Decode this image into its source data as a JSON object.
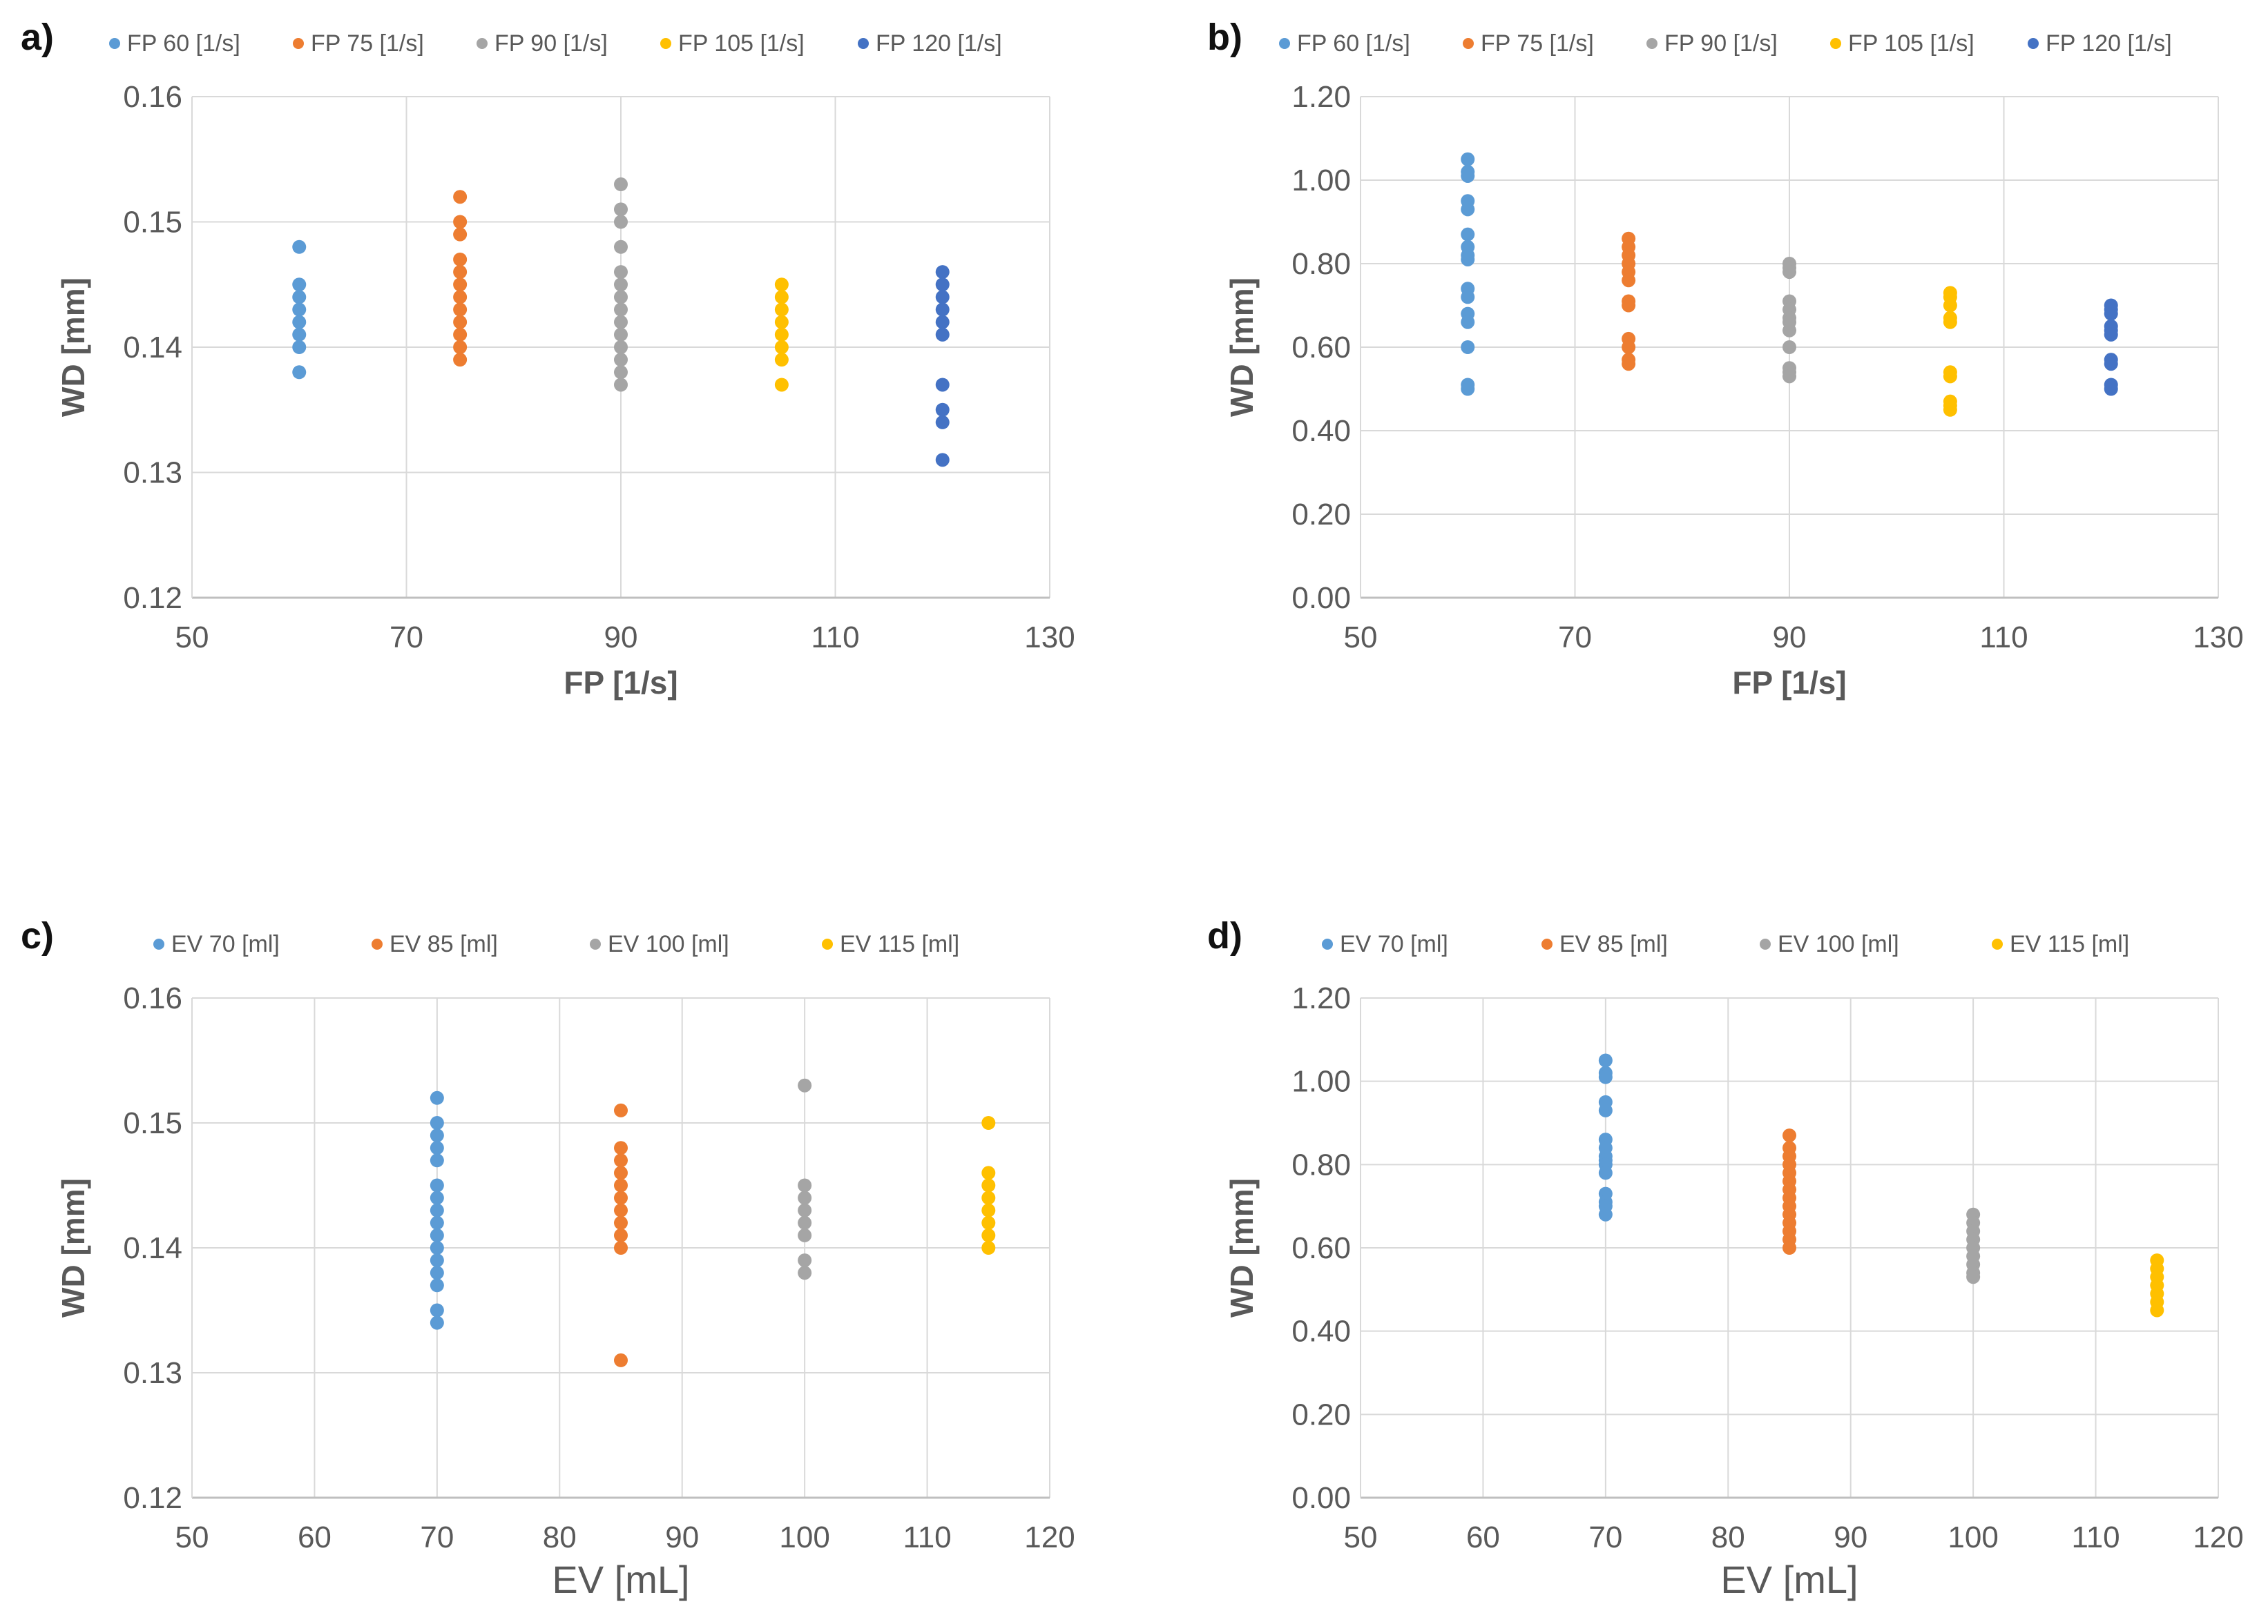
{
  "chart_data": [
    {
      "type": "scatter",
      "panel_label": "a)",
      "xlabel": "FP [1/s]",
      "ylabel": "WD [mm]",
      "xlim": [
        50,
        130
      ],
      "ylim": [
        0.12,
        0.16
      ],
      "xticks": [
        50,
        70,
        90,
        110,
        130
      ],
      "yticks": [
        0.12,
        0.13,
        0.14,
        0.15,
        0.16
      ],
      "xtick_labels": [
        "50",
        "70",
        "90",
        "110",
        "130"
      ],
      "ytick_labels": [
        "0.12",
        "0.13",
        "0.14",
        "0.15",
        "0.16"
      ],
      "legend_position": "top",
      "series": [
        {
          "name": "FP 60 [1/s]",
          "color": "#5b9bd5",
          "x": 60,
          "y": [
            0.148,
            0.145,
            0.144,
            0.143,
            0.142,
            0.141,
            0.14,
            0.138
          ]
        },
        {
          "name": "FP 75 [1/s]",
          "color": "#ed7d31",
          "x": 75,
          "y": [
            0.152,
            0.15,
            0.149,
            0.147,
            0.146,
            0.145,
            0.144,
            0.143,
            0.142,
            0.141,
            0.14,
            0.139
          ]
        },
        {
          "name": "FP 90 [1/s]",
          "color": "#a5a5a5",
          "x": 90,
          "y": [
            0.153,
            0.151,
            0.15,
            0.148,
            0.146,
            0.145,
            0.144,
            0.143,
            0.142,
            0.141,
            0.14,
            0.139,
            0.138,
            0.137
          ]
        },
        {
          "name": "FP 105 [1/s]",
          "color": "#ffc000",
          "x": 105,
          "y": [
            0.145,
            0.144,
            0.143,
            0.142,
            0.141,
            0.14,
            0.139,
            0.137
          ]
        },
        {
          "name": "FP 120 [1/s]",
          "color": "#4472c4",
          "x": 120,
          "y": [
            0.146,
            0.145,
            0.144,
            0.143,
            0.142,
            0.141,
            0.137,
            0.135,
            0.134,
            0.131
          ]
        }
      ]
    },
    {
      "type": "scatter",
      "panel_label": "b)",
      "xlabel": "FP [1/s]",
      "ylabel": "WD [mm]",
      "xlim": [
        50,
        130
      ],
      "ylim": [
        0,
        1.2
      ],
      "xticks": [
        50,
        70,
        90,
        110,
        130
      ],
      "yticks": [
        0,
        0.2,
        0.4,
        0.6,
        0.8,
        1.0,
        1.2
      ],
      "xtick_labels": [
        "50",
        "70",
        "90",
        "110",
        "130"
      ],
      "ytick_labels": [
        "0.00",
        "0.20",
        "0.40",
        "0.60",
        "0.80",
        "1.00",
        "1.20"
      ],
      "legend_position": "top",
      "series": [
        {
          "name": "FP 60 [1/s]",
          "color": "#5b9bd5",
          "x": 60,
          "y": [
            1.05,
            1.02,
            1.01,
            0.95,
            0.93,
            0.87,
            0.84,
            0.82,
            0.81,
            0.74,
            0.72,
            0.68,
            0.66,
            0.6,
            0.51,
            0.5
          ]
        },
        {
          "name": "FP 75 [1/s]",
          "color": "#ed7d31",
          "x": 75,
          "y": [
            0.86,
            0.84,
            0.82,
            0.8,
            0.78,
            0.76,
            0.71,
            0.7,
            0.62,
            0.6,
            0.57,
            0.56
          ]
        },
        {
          "name": "FP 90 [1/s]",
          "color": "#a5a5a5",
          "x": 90,
          "y": [
            0.8,
            0.79,
            0.78,
            0.71,
            0.69,
            0.67,
            0.66,
            0.64,
            0.6,
            0.55,
            0.54,
            0.53
          ]
        },
        {
          "name": "FP 105 [1/s]",
          "color": "#ffc000",
          "x": 105,
          "y": [
            0.73,
            0.72,
            0.7,
            0.67,
            0.66,
            0.54,
            0.53,
            0.47,
            0.46,
            0.45
          ]
        },
        {
          "name": "FP 120 [1/s]",
          "color": "#4472c4",
          "x": 120,
          "y": [
            0.7,
            0.69,
            0.68,
            0.65,
            0.64,
            0.63,
            0.57,
            0.56,
            0.51,
            0.5
          ]
        }
      ]
    },
    {
      "type": "scatter",
      "panel_label": "c)",
      "xlabel": "EV [mL]",
      "ylabel": "WD [mm]",
      "xlim": [
        50,
        120
      ],
      "ylim": [
        0.12,
        0.16
      ],
      "xticks": [
        50,
        60,
        70,
        80,
        90,
        100,
        110,
        120
      ],
      "yticks": [
        0.12,
        0.13,
        0.14,
        0.15,
        0.16
      ],
      "xtick_labels": [
        "50",
        "60",
        "70",
        "80",
        "90",
        "100",
        "110",
        "120"
      ],
      "ytick_labels": [
        "0.12",
        "0.13",
        "0.14",
        "0.15",
        "0.16"
      ],
      "legend_position": "top",
      "series": [
        {
          "name": "EV 70 [ml]",
          "color": "#5b9bd5",
          "x": 70,
          "y": [
            0.152,
            0.15,
            0.149,
            0.148,
            0.147,
            0.145,
            0.144,
            0.143,
            0.142,
            0.141,
            0.14,
            0.139,
            0.138,
            0.137,
            0.135,
            0.134
          ]
        },
        {
          "name": "EV 85 [ml]",
          "color": "#ed7d31",
          "x": 85,
          "y": [
            0.151,
            0.148,
            0.147,
            0.146,
            0.145,
            0.144,
            0.143,
            0.142,
            0.141,
            0.14,
            0.131
          ]
        },
        {
          "name": "EV 100 [ml]",
          "color": "#a5a5a5",
          "x": 100,
          "y": [
            0.153,
            0.145,
            0.144,
            0.143,
            0.142,
            0.141,
            0.139,
            0.138
          ]
        },
        {
          "name": "EV 115 [ml]",
          "color": "#ffc000",
          "x": 115,
          "y": [
            0.15,
            0.146,
            0.145,
            0.144,
            0.143,
            0.142,
            0.141,
            0.14
          ]
        }
      ]
    },
    {
      "type": "scatter",
      "panel_label": "d)",
      "xlabel": "EV [mL]",
      "ylabel": "WD [mm]",
      "xlim": [
        50,
        120
      ],
      "ylim": [
        0,
        1.2
      ],
      "xticks": [
        50,
        60,
        70,
        80,
        90,
        100,
        110,
        120
      ],
      "yticks": [
        0,
        0.2,
        0.4,
        0.6,
        0.8,
        1.0,
        1.2
      ],
      "xtick_labels": [
        "50",
        "60",
        "70",
        "80",
        "90",
        "100",
        "110",
        "120"
      ],
      "ytick_labels": [
        "0.00",
        "0.20",
        "0.40",
        "0.60",
        "0.80",
        "1.00",
        "1.20"
      ],
      "legend_position": "top",
      "series": [
        {
          "name": "EV 70 [ml]",
          "color": "#5b9bd5",
          "x": 70,
          "y": [
            1.05,
            1.02,
            1.01,
            0.95,
            0.93,
            0.86,
            0.84,
            0.82,
            0.81,
            0.8,
            0.78,
            0.73,
            0.71,
            0.7,
            0.68
          ]
        },
        {
          "name": "EV 85 [ml]",
          "color": "#ed7d31",
          "x": 85,
          "y": [
            0.87,
            0.84,
            0.82,
            0.8,
            0.78,
            0.76,
            0.74,
            0.72,
            0.7,
            0.68,
            0.66,
            0.64,
            0.62,
            0.6
          ]
        },
        {
          "name": "EV 100 [ml]",
          "color": "#a5a5a5",
          "x": 100,
          "y": [
            0.68,
            0.66,
            0.64,
            0.62,
            0.6,
            0.58,
            0.56,
            0.54,
            0.53
          ]
        },
        {
          "name": "EV 115 [ml]",
          "color": "#ffc000",
          "x": 115,
          "y": [
            0.57,
            0.55,
            0.53,
            0.51,
            0.49,
            0.47,
            0.45
          ]
        }
      ]
    }
  ]
}
